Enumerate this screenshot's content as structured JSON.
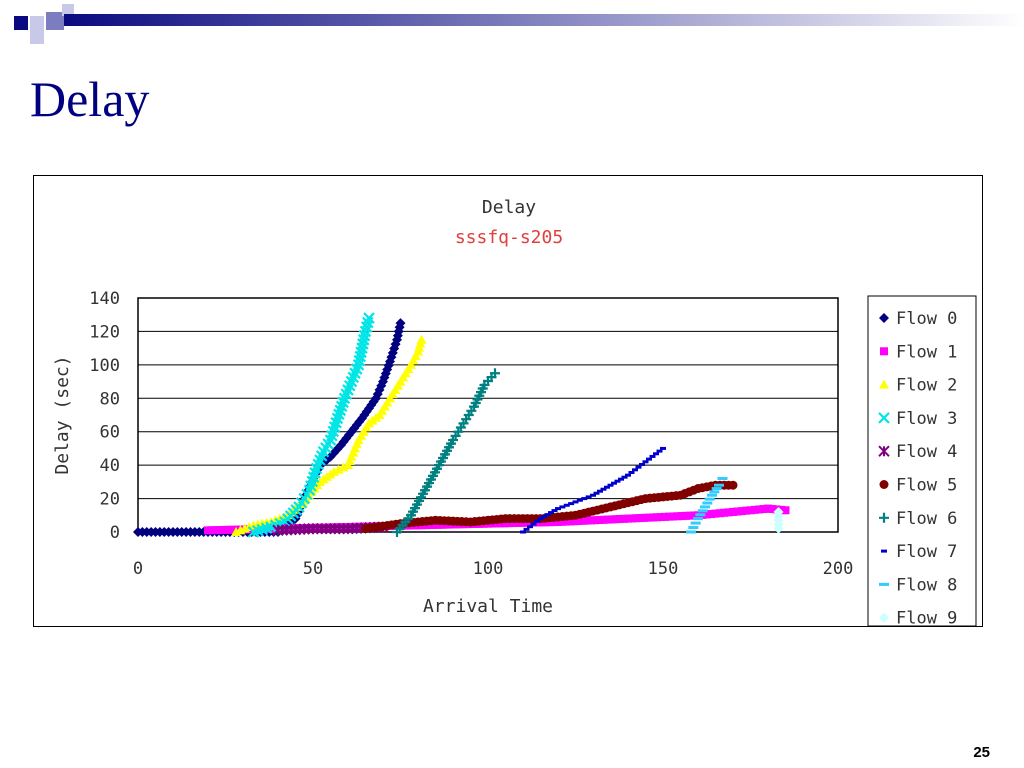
{
  "slide": {
    "title": "Delay",
    "page_number": "25"
  },
  "colors": {
    "title": "#000080",
    "subtitle": "#e0403c",
    "header_gradient_start": "#0a0a80",
    "header_gradient_end": "#ffffff"
  },
  "chart_data": {
    "type": "scatter",
    "title": "Delay",
    "subtitle": "sssfq-s205",
    "xlabel": "Arrival Time",
    "ylabel": "Delay (sec)",
    "xlim": [
      0,
      200
    ],
    "ylim": [
      0,
      140
    ],
    "xticks": [
      "0",
      "50",
      "100",
      "150",
      "200"
    ],
    "yticks": [
      "0",
      "20",
      "40",
      "60",
      "80",
      "100",
      "120",
      "140"
    ],
    "grid": "horizontal",
    "legend_position": "right",
    "series": [
      {
        "name": "Flow 0",
        "color": "#000080",
        "marker": "diamond",
        "x": [
          0,
          10,
          20,
          30,
          40,
          45,
          48,
          50,
          52,
          55,
          58,
          61,
          64,
          66,
          68,
          70,
          72,
          74,
          75
        ],
        "y": [
          0,
          0,
          0,
          0,
          0,
          8,
          22,
          32,
          40,
          45,
          52,
          60,
          68,
          74,
          80,
          90,
          102,
          115,
          125
        ]
      },
      {
        "name": "Flow 1",
        "color": "#ff00ff",
        "marker": "square",
        "x": [
          20,
          40,
          60,
          80,
          100,
          120,
          140,
          160,
          170,
          180,
          185
        ],
        "y": [
          1,
          2,
          3,
          4,
          5,
          6,
          8,
          10,
          12,
          14,
          13
        ]
      },
      {
        "name": "Flow 2",
        "color": "#ffff00",
        "marker": "triangle",
        "x": [
          28,
          33,
          38,
          43,
          48,
          52,
          56,
          60,
          63,
          66,
          69,
          72,
          75,
          78,
          80,
          81
        ],
        "y": [
          0,
          4,
          6,
          10,
          20,
          30,
          36,
          40,
          55,
          65,
          70,
          80,
          90,
          100,
          108,
          115
        ]
      },
      {
        "name": "Flow 3",
        "color": "#00e5e5",
        "marker": "x",
        "x": [
          33,
          38,
          42,
          46,
          49,
          51,
          53,
          55,
          57,
          59,
          61,
          63,
          64,
          65,
          66
        ],
        "y": [
          0,
          3,
          6,
          15,
          25,
          38,
          48,
          55,
          68,
          80,
          90,
          100,
          110,
          120,
          128
        ]
      },
      {
        "name": "Flow 4",
        "color": "#800080",
        "marker": "star",
        "x": [
          40,
          50,
          60,
          70
        ],
        "y": [
          1,
          2,
          2,
          3
        ]
      },
      {
        "name": "Flow 5",
        "color": "#800000",
        "marker": "circle",
        "x": [
          65,
          75,
          85,
          95,
          105,
          115,
          125,
          135,
          145,
          155,
          160,
          165,
          170
        ],
        "y": [
          2,
          5,
          7,
          6,
          8,
          8,
          10,
          15,
          20,
          22,
          26,
          28,
          28
        ]
      },
      {
        "name": "Flow 6",
        "color": "#008080",
        "marker": "plus",
        "x": [
          74,
          78,
          82,
          86,
          90,
          93,
          96,
          99,
          102
        ],
        "y": [
          0,
          10,
          25,
          40,
          55,
          65,
          75,
          88,
          95
        ]
      },
      {
        "name": "Flow 7",
        "color": "#0000cd",
        "marker": "dash",
        "x": [
          110,
          115,
          120,
          125,
          130,
          135,
          140,
          145,
          150
        ],
        "y": [
          0,
          8,
          14,
          18,
          22,
          28,
          34,
          42,
          50
        ]
      },
      {
        "name": "Flow 8",
        "color": "#33ccff",
        "marker": "hbar",
        "x": [
          158,
          160,
          162,
          164,
          166,
          167
        ],
        "y": [
          0,
          8,
          15,
          22,
          28,
          32
        ]
      },
      {
        "name": "Flow 9",
        "color": "#ccffff",
        "marker": "diamond",
        "x": [
          183,
          183,
          183
        ],
        "y": [
          2,
          7,
          12
        ]
      }
    ]
  }
}
